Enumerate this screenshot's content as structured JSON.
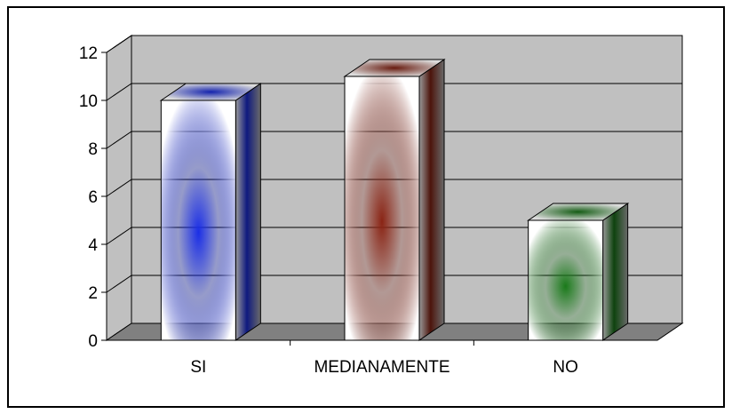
{
  "chart_data": {
    "type": "bar",
    "style": "3d-column",
    "categories": [
      "SI",
      "MEDIANAMENTE",
      "NO"
    ],
    "values": [
      10,
      11,
      5
    ],
    "ylim": [
      0,
      12
    ],
    "yticks": [
      0,
      2,
      4,
      6,
      8,
      10,
      12
    ],
    "grid": true,
    "legend": "none",
    "colors": [
      "#1a2ee6",
      "#8a2414",
      "#1a7a1a"
    ],
    "wall_color": "#c0c0c0",
    "floor_color": "#808080"
  }
}
